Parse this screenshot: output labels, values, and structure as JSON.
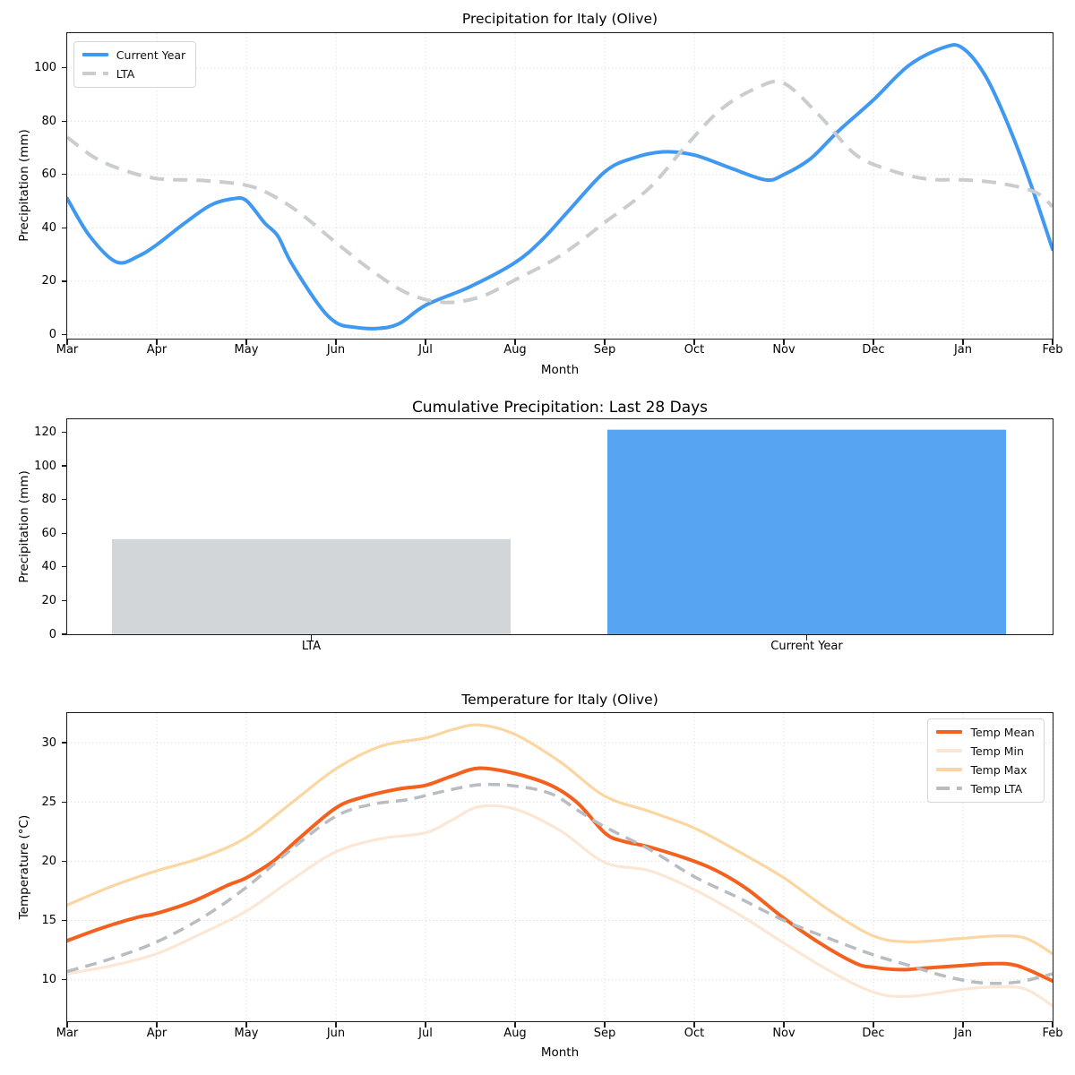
{
  "figure": {
    "background": "#ffffff"
  },
  "chart_data": [
    {
      "id": "precipitation",
      "type": "line",
      "title": "Precipitation for Italy (Olive)",
      "xlabel": "Month",
      "ylabel": "Precipitation (mm)",
      "categories": [
        "Mar",
        "Apr",
        "May",
        "Jun",
        "Jul",
        "Aug",
        "Sep",
        "Oct",
        "Nov",
        "Dec",
        "Jan",
        "Feb"
      ],
      "yticks": [
        0,
        20,
        40,
        60,
        80,
        100
      ],
      "ylim": [
        -1.5,
        113
      ],
      "grid": true,
      "legend_position": "upper left",
      "series": [
        {
          "name": "Current Year",
          "color": "#4099f0",
          "style": "solid",
          "stroke_width": 4,
          "values": [
            51,
            34,
            50,
            4.5,
            11,
            27,
            61,
            67.5,
            60,
            88,
            107.5,
            32
          ],
          "curve": {
            "x": [
              0,
              0.25,
              0.55,
              0.8,
              1,
              1.3,
              1.6,
              1.85,
              2,
              2.2,
              2.35,
              2.5,
              2.8,
              3,
              3.2,
              3.45,
              3.7,
              4,
              4.5,
              5,
              5.3,
              5.6,
              6,
              6.3,
              6.65,
              7,
              7.4,
              7.8,
              8,
              8.3,
              8.6,
              9,
              9.4,
              9.8,
              10,
              10.25,
              10.5,
              10.75,
              11
            ],
            "y": [
              51,
              37,
              27.2,
              29.5,
              33.7,
              41.5,
              48.5,
              50.9,
              50.2,
              42,
              37,
              27,
              11.5,
              4.5,
              2.8,
              2.3,
              4,
              11,
              18,
              27,
              35.5,
              46.5,
              61,
              66,
              68.5,
              67.3,
              62.5,
              58,
              60,
              66,
              76,
              88,
              101,
              107.8,
              107.3,
              97,
              79,
              57,
              32
            ]
          }
        },
        {
          "name": "LTA",
          "color": "#c9cdd0",
          "style": "dashed",
          "stroke_width": 4,
          "values": [
            74,
            58.5,
            56,
            34.5,
            13,
            20.5,
            42,
            72.5,
            94,
            61.5,
            58,
            48
          ],
          "curve": {
            "x": [
              0,
              0.3,
              0.6,
              1,
              1.5,
              2,
              2.3,
              2.6,
              3,
              3.4,
              3.8,
              4.2,
              4.6,
              5,
              5.5,
              6,
              6.5,
              6.9,
              7.3,
              7.7,
              8,
              8.4,
              8.8,
              9.2,
              9.6,
              10,
              10.4,
              10.8,
              11
            ],
            "y": [
              74,
              66.5,
              62,
              58.5,
              57.8,
              56,
              52,
              45.5,
              34.5,
              24,
              15.5,
              12.1,
              14,
              20.5,
              29.5,
              42,
              55,
              70.5,
              84.5,
              92.5,
              94.2,
              82,
              67.5,
              61.5,
              58.3,
              58,
              56.8,
              53.5,
              48
            ]
          }
        }
      ]
    },
    {
      "id": "cumulative-precipitation",
      "type": "bar",
      "title": "Cumulative Precipitation: Last 28 Days",
      "xlabel": "",
      "ylabel": "Precipitation (mm)",
      "categories": [
        "LTA",
        "Current Year"
      ],
      "values": [
        56.5,
        121.5
      ],
      "bar_colors": [
        "#d3d6d9",
        "#57a5f2"
      ],
      "yticks": [
        0,
        20,
        40,
        60,
        80,
        100,
        120
      ],
      "ylim": [
        0,
        127.7
      ],
      "grid": false
    },
    {
      "id": "temperature",
      "type": "line",
      "title": "Temperature for Italy (Olive)",
      "xlabel": "Month",
      "ylabel": "Temperature (°C)",
      "categories": [
        "Mar",
        "Apr",
        "May",
        "Jun",
        "Jul",
        "Aug",
        "Sep",
        "Oct",
        "Nov",
        "Dec",
        "Jan",
        "Feb"
      ],
      "yticks": [
        10,
        15,
        20,
        25,
        30
      ],
      "ylim": [
        6.5,
        32.5
      ],
      "grid": true,
      "legend_position": "upper right",
      "series": [
        {
          "name": "Temp Mean",
          "color": "#f4601d",
          "style": "solid",
          "stroke_width": 4,
          "values": [
            13.3,
            15.6,
            18.6,
            24.5,
            26.4,
            27.4,
            22.4,
            20,
            15.2,
            11,
            11.2,
            9.9
          ],
          "curve": {
            "x": [
              0,
              0.4,
              0.8,
              1,
              1.4,
              1.8,
              2,
              2.3,
              2.6,
              3,
              3.3,
              3.7,
              4,
              4.3,
              4.6,
              5,
              5.4,
              5.7,
              6,
              6.2,
              6.5,
              7,
              7.3,
              7.6,
              8,
              8.4,
              8.8,
              9,
              9.3,
              9.6,
              10,
              10.3,
              10.6,
              11
            ],
            "y": [
              13.3,
              14.4,
              15.3,
              15.6,
              16.6,
              18,
              18.6,
              20,
              22,
              24.5,
              25.4,
              26.1,
              26.4,
              27.2,
              27.85,
              27.4,
              26.4,
              24.9,
              22.4,
              21.7,
              21.2,
              20,
              19,
              17.6,
              15.2,
              13.1,
              11.4,
              11.05,
              10.85,
              11,
              11.2,
              11.35,
              11.2,
              9.9
            ]
          }
        },
        {
          "name": "Temp Min",
          "color": "#fce7d5",
          "style": "solid",
          "stroke_width": 3.2,
          "values": [
            10.5,
            12.2,
            15.8,
            20.8,
            22.4,
            24.4,
            19.9,
            17.6,
            13.1,
            9,
            9.2,
            7.8
          ],
          "curve": {
            "x": [
              0,
              0.5,
              1,
              1.5,
              2,
              2.5,
              3,
              3.5,
              4,
              4.3,
              4.6,
              5,
              5.5,
              6,
              6.5,
              7,
              7.5,
              8,
              8.5,
              9,
              9.4,
              10,
              10.4,
              10.7,
              11
            ],
            "y": [
              10.5,
              11.2,
              12.2,
              13.9,
              15.8,
              18.4,
              20.8,
              21.9,
              22.4,
              23.5,
              24.6,
              24.4,
              22.6,
              19.9,
              19.2,
              17.6,
              15.5,
              13.1,
              10.8,
              8.95,
              8.6,
              9.2,
              9.4,
              9.2,
              7.8
            ]
          }
        },
        {
          "name": "Temp Max",
          "color": "#fbd6a0",
          "style": "solid",
          "stroke_width": 3.2,
          "values": [
            16.3,
            19.2,
            22,
            27.8,
            30.4,
            30.7,
            25.5,
            22.8,
            18.6,
            13.7,
            13.5,
            12.2
          ],
          "curve": {
            "x": [
              0,
              0.5,
              1,
              1.5,
              2,
              2.5,
              3,
              3.5,
              4,
              4.3,
              4.6,
              5,
              5.5,
              6,
              6.5,
              7,
              7.5,
              8,
              8.5,
              9,
              9.4,
              10,
              10.4,
              10.7,
              11
            ],
            "y": [
              16.3,
              17.9,
              19.2,
              20.3,
              22,
              24.9,
              27.8,
              29.7,
              30.4,
              31.1,
              31.5,
              30.7,
              28.4,
              25.5,
              24.2,
              22.8,
              20.8,
              18.6,
              15.9,
              13.7,
              13.2,
              13.5,
              13.7,
              13.5,
              12.2
            ]
          }
        },
        {
          "name": "Temp LTA",
          "color": "#b7bdc2",
          "style": "dashed",
          "stroke_width": 3.5,
          "values": [
            10.7,
            13.2,
            17.8,
            23.8,
            25.2,
            26.4,
            22.9,
            18.7,
            15,
            12.1,
            9.9,
            10.5
          ],
          "curve": {
            "x": [
              0,
              0.5,
              1,
              1.5,
              2,
              2.5,
              3,
              3.4,
              3.8,
              4.2,
              4.6,
              5,
              5.4,
              5.7,
              6,
              6.5,
              7,
              7.5,
              8,
              8.5,
              9,
              9.4,
              9.8,
              10.2,
              10.6,
              11
            ],
            "y": [
              10.7,
              11.8,
              13.2,
              15.2,
              17.8,
              21,
              23.8,
              24.8,
              25.2,
              25.9,
              26.45,
              26.35,
              25.7,
              24.3,
              22.9,
              21,
              18.7,
              16.9,
              15,
              13.5,
              12.1,
              11.2,
              10.3,
              9.75,
              9.8,
              10.5
            ]
          }
        }
      ]
    }
  ]
}
